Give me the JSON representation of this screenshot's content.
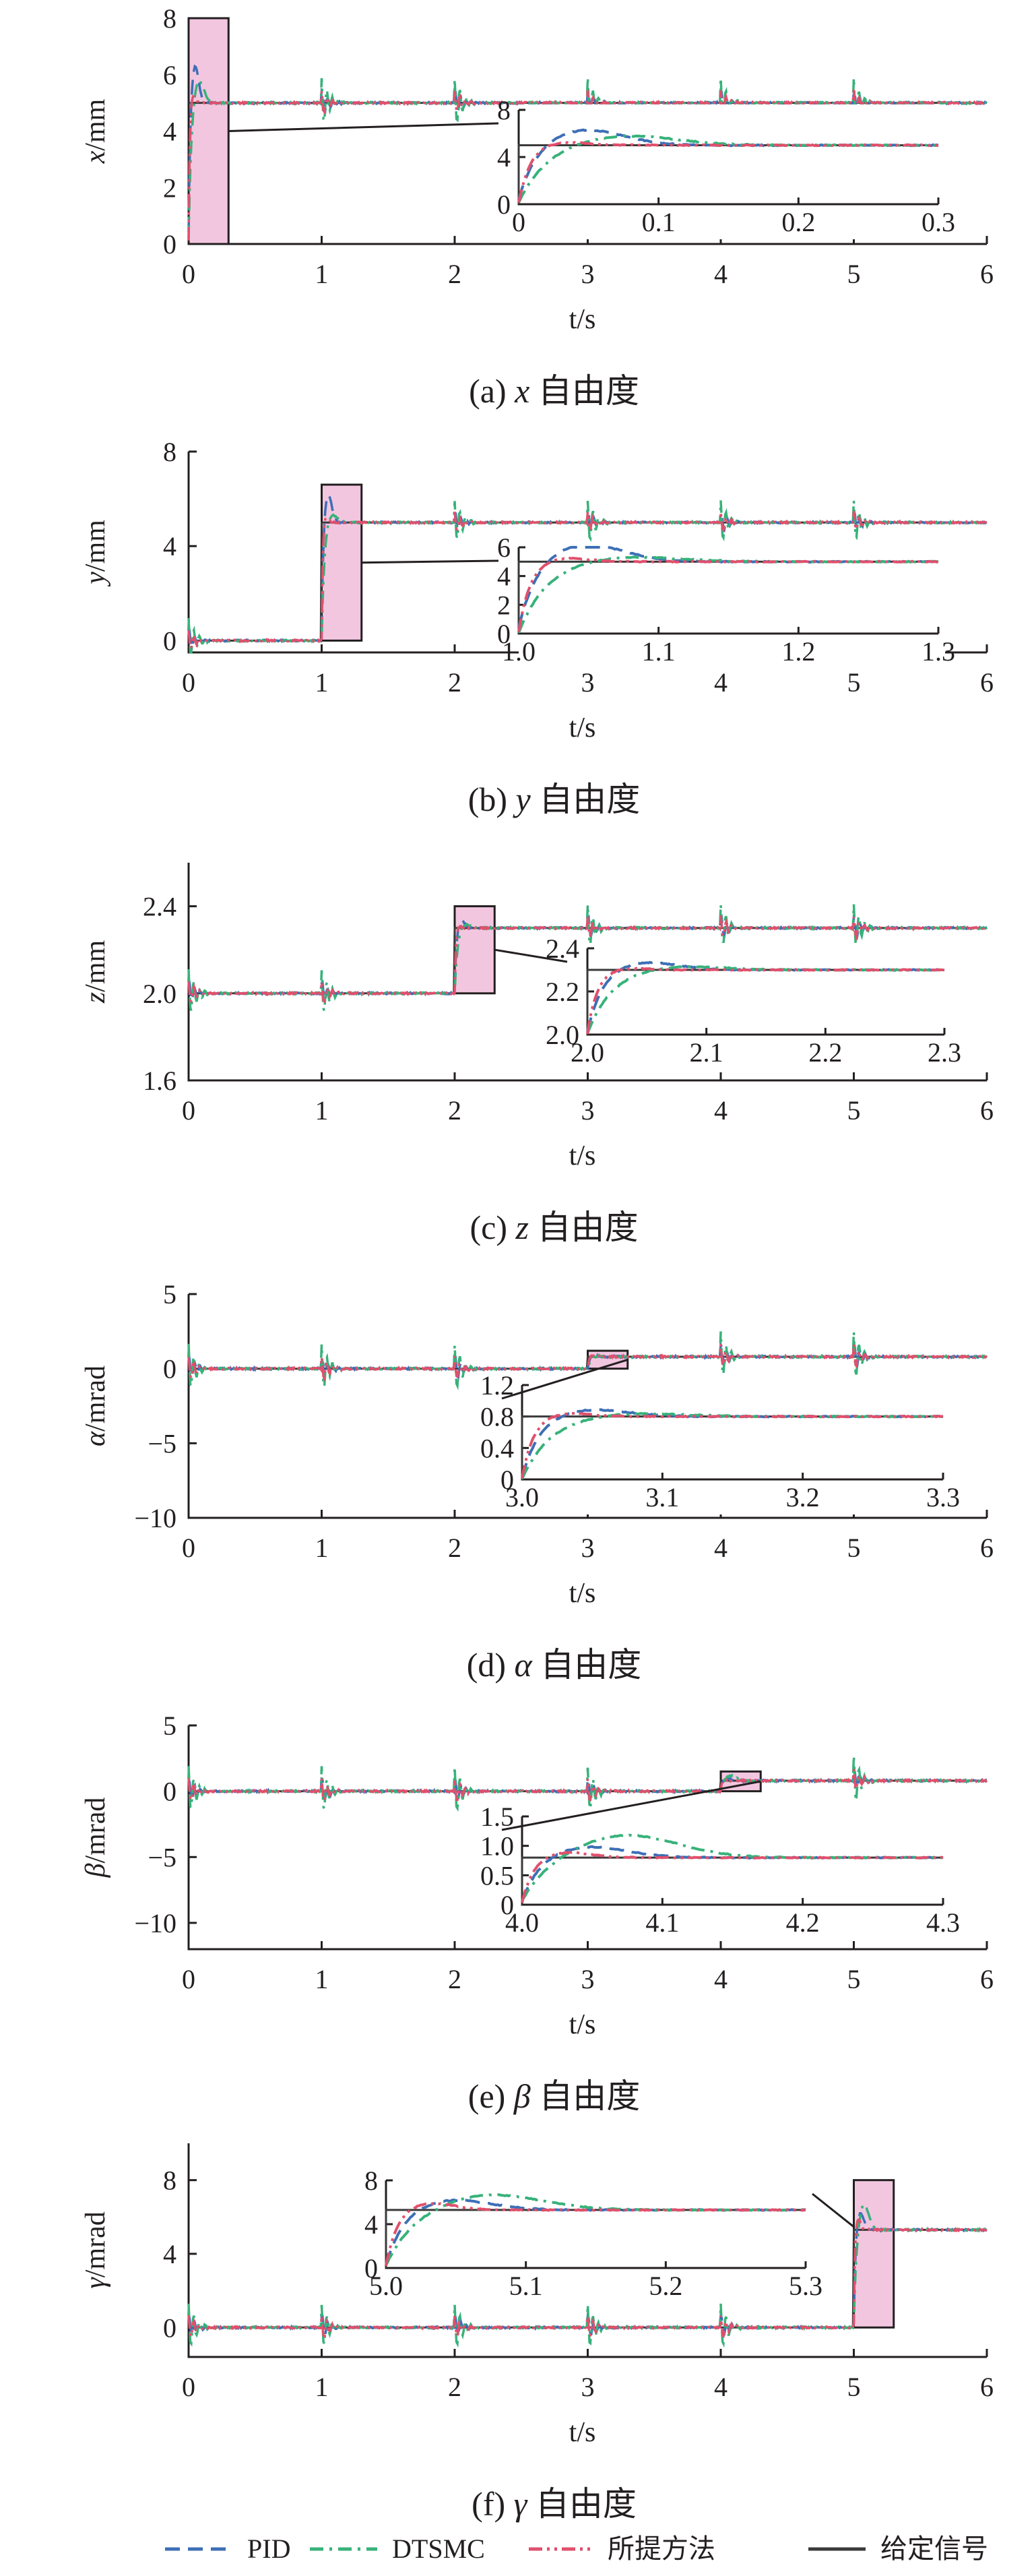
{
  "colors": {
    "PID": "#3d6fb6",
    "DTSMC": "#37b27a",
    "proposed": "#e0506c",
    "reference": "#3a3a3a",
    "zoom_fill": "#f3c6e0",
    "axis": "#231f20"
  },
  "legend": [
    {
      "key": "PID",
      "label": "PID",
      "style": "dashed"
    },
    {
      "key": "DTSMC",
      "label": "DTSMC",
      "style": "dashdot"
    },
    {
      "key": "proposed",
      "label": "所提方法",
      "style": "dashdotdot"
    },
    {
      "key": "reference",
      "label": "给定信号",
      "style": "solid"
    }
  ],
  "chart_data": [
    {
      "type": "line",
      "caption": "(a) x 自由度",
      "caption_prefix": "(a) ",
      "caption_var": "x",
      "caption_suffix": " 自由度",
      "xlabel": "t/s",
      "ylabel_var": "x",
      "ylabel_unit": "/mm",
      "xlim": [
        0,
        6
      ],
      "ylim": [
        0,
        8
      ],
      "xticks": [
        "0",
        "1",
        "2",
        "3",
        "4",
        "5",
        "6"
      ],
      "xtick_values": [
        0,
        1,
        2,
        3,
        4,
        5,
        6
      ],
      "yticks": [
        "0",
        "2",
        "4",
        "6",
        "8"
      ],
      "ytick_values": [
        0,
        2,
        4,
        6,
        8
      ],
      "step_time": 0,
      "initial": 0,
      "final": 5,
      "peaks": {
        "PID": 6.4,
        "DTSMC": 5.9,
        "proposed": 5.3
      },
      "inset": {
        "xlim": [
          0,
          0.3
        ],
        "ylim": [
          0,
          8
        ],
        "xticks": [
          "0",
          "0.1",
          "0.2",
          "0.3"
        ],
        "xtick_values": [
          0,
          0.1,
          0.2,
          0.3
        ],
        "yticks": [
          "0",
          "4",
          "8"
        ],
        "ytick_values": [
          0,
          4,
          8
        ],
        "zoom_window": {
          "x": [
            0,
            0.3
          ],
          "y": [
            0,
            8
          ]
        }
      }
    },
    {
      "type": "line",
      "caption": "(b) y 自由度",
      "caption_prefix": "(b) ",
      "caption_var": "y",
      "caption_suffix": " 自由度",
      "xlabel": "t/s",
      "ylabel_var": "y",
      "ylabel_unit": "/mm",
      "xlim": [
        0,
        6
      ],
      "ylim": [
        -0.5,
        8
      ],
      "xticks": [
        "0",
        "1",
        "2",
        "3",
        "4",
        "5",
        "6"
      ],
      "xtick_values": [
        0,
        1,
        2,
        3,
        4,
        5,
        6
      ],
      "yticks": [
        "0",
        "4",
        "8"
      ],
      "ytick_values": [
        0,
        4,
        8
      ],
      "step_time": 1,
      "initial": 0,
      "final": 5,
      "peaks": {
        "PID": 6.3,
        "DTSMC": 5.4,
        "proposed": 5.3
      },
      "inset": {
        "xlim": [
          1.0,
          1.3
        ],
        "ylim": [
          0,
          6
        ],
        "xticks": [
          "1.0",
          "1.1",
          "1.2",
          "1.3"
        ],
        "xtick_values": [
          1.0,
          1.1,
          1.2,
          1.3
        ],
        "yticks": [
          "0",
          "2",
          "4",
          "6"
        ],
        "ytick_values": [
          0,
          2,
          4,
          6
        ],
        "zoom_window": {
          "x": [
            1.0,
            1.3
          ],
          "y": [
            0,
            6.6
          ]
        }
      }
    },
    {
      "type": "line",
      "caption": "(c) z 自由度",
      "caption_prefix": "(c) ",
      "caption_var": "z",
      "caption_suffix": " 自由度",
      "xlabel": "t/s",
      "ylabel_var": "z",
      "ylabel_unit": "/mm",
      "xlim": [
        0,
        6
      ],
      "ylim": [
        1.6,
        2.6
      ],
      "xticks": [
        "0",
        "1",
        "2",
        "3",
        "4",
        "5",
        "6"
      ],
      "xtick_values": [
        0,
        1,
        2,
        3,
        4,
        5,
        6
      ],
      "yticks": [
        "1.6",
        "2.0",
        "2.4"
      ],
      "ytick_values": [
        1.6,
        2.0,
        2.4
      ],
      "step_time": 2,
      "initial": 2.0,
      "final": 2.3,
      "peaks": {
        "PID": 2.34,
        "DTSMC": 2.32,
        "proposed": 2.31
      },
      "inset": {
        "xlim": [
          2.0,
          2.3
        ],
        "ylim": [
          2.0,
          2.4
        ],
        "xticks": [
          "2.0",
          "2.1",
          "2.2",
          "2.3"
        ],
        "xtick_values": [
          2.0,
          2.1,
          2.2,
          2.3
        ],
        "yticks": [
          "2.0",
          "2.2",
          "2.4"
        ],
        "ytick_values": [
          2.0,
          2.2,
          2.4
        ],
        "zoom_window": {
          "x": [
            2.0,
            2.3
          ],
          "y": [
            2.0,
            2.4
          ]
        }
      }
    },
    {
      "type": "line",
      "caption": "(d) α 自由度",
      "caption_prefix": "(d) ",
      "caption_var": "α",
      "caption_suffix": " 自由度",
      "xlabel": "t/s",
      "ylabel_var": "α",
      "ylabel_unit": "/mrad",
      "xlim": [
        0,
        6
      ],
      "ylim": [
        -10,
        5
      ],
      "xticks": [
        "0",
        "1",
        "2",
        "3",
        "4",
        "5",
        "6"
      ],
      "xtick_values": [
        0,
        1,
        2,
        3,
        4,
        5,
        6
      ],
      "yticks": [
        "−10",
        "−5",
        "0",
        "5"
      ],
      "ytick_values": [
        -10,
        -5,
        0,
        5
      ],
      "step_time": 3,
      "initial": 0,
      "final": 0.8,
      "peaks": {
        "PID": 0.9,
        "DTSMC": 0.85,
        "proposed": 0.85
      },
      "inset": {
        "xlim": [
          3.0,
          3.3
        ],
        "ylim": [
          0,
          1.2
        ],
        "xticks": [
          "3.0",
          "3.1",
          "3.2",
          "3.3"
        ],
        "xtick_values": [
          3.0,
          3.1,
          3.2,
          3.3
        ],
        "yticks": [
          "0",
          "0.4",
          "0.8",
          "1.2"
        ],
        "ytick_values": [
          0,
          0.4,
          0.8,
          1.2
        ],
        "zoom_window": {
          "x": [
            3.0,
            3.3
          ],
          "y": [
            0,
            1.2
          ]
        }
      }
    },
    {
      "type": "line",
      "caption": "(e) β 自由度",
      "caption_prefix": "(e) ",
      "caption_var": "β",
      "caption_suffix": " 自由度",
      "xlabel": "t/s",
      "ylabel_var": "β",
      "ylabel_unit": "/mrad",
      "xlim": [
        0,
        6
      ],
      "ylim": [
        -12,
        5
      ],
      "xticks": [
        "0",
        "1",
        "2",
        "3",
        "4",
        "5",
        "6"
      ],
      "xtick_values": [
        0,
        1,
        2,
        3,
        4,
        5,
        6
      ],
      "yticks": [
        "−10",
        "−5",
        "0",
        "5"
      ],
      "ytick_values": [
        -10,
        -5,
        0,
        5
      ],
      "step_time": 4,
      "initial": 0,
      "final": 0.8,
      "peaks": {
        "PID": 1.0,
        "DTSMC": 1.2,
        "proposed": 0.9
      },
      "inset": {
        "xlim": [
          4.0,
          4.3
        ],
        "ylim": [
          0,
          1.5
        ],
        "xticks": [
          "4.0",
          "4.1",
          "4.2",
          "4.3"
        ],
        "xtick_values": [
          4.0,
          4.1,
          4.2,
          4.3
        ],
        "yticks": [
          "0",
          "0.5",
          "1.0",
          "1.5"
        ],
        "ytick_values": [
          0,
          0.5,
          1.0,
          1.5
        ],
        "zoom_window": {
          "x": [
            4.0,
            4.3
          ],
          "y": [
            0,
            1.5
          ]
        }
      }
    },
    {
      "type": "line",
      "caption": "(f) γ 自由度",
      "caption_prefix": "(f) ",
      "caption_var": "γ",
      "caption_suffix": " 自由度",
      "xlabel": "t/s",
      "ylabel_var": "γ",
      "ylabel_unit": "/mrad",
      "xlim": [
        0,
        6
      ],
      "ylim": [
        -1.6,
        10
      ],
      "xticks": [
        "0",
        "1",
        "2",
        "3",
        "4",
        "5",
        "6"
      ],
      "xtick_values": [
        0,
        1,
        2,
        3,
        4,
        5,
        6
      ],
      "yticks": [
        "0",
        "4",
        "8"
      ],
      "ytick_values": [
        0,
        4,
        8
      ],
      "step_time": 5,
      "initial": 0,
      "final": 5.3,
      "peaks": {
        "PID": 6.3,
        "DTSMC": 6.8,
        "proposed": 6.0
      },
      "inset": {
        "xlim": [
          5.0,
          5.3
        ],
        "ylim": [
          0,
          8
        ],
        "xticks": [
          "5.0",
          "5.1",
          "5.2",
          "5.3"
        ],
        "xtick_values": [
          5.0,
          5.1,
          5.2,
          5.3
        ],
        "yticks": [
          "0",
          "4",
          "8"
        ],
        "ytick_values": [
          0,
          4,
          8
        ],
        "zoom_window": {
          "x": [
            5.0,
            5.3
          ],
          "y": [
            0,
            8
          ]
        }
      }
    }
  ]
}
